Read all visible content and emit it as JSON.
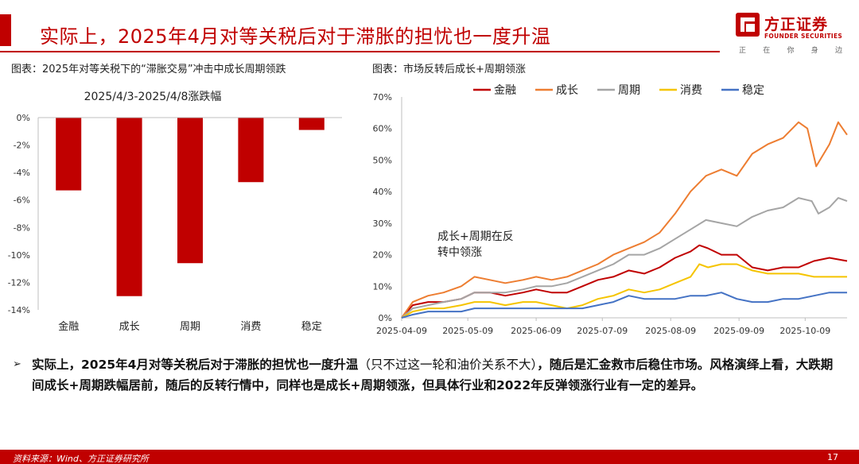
{
  "slide": {
    "title": "实际上，2025年4月对等关税后对于滞胀的担忧也一度升温",
    "page_number": "17",
    "source": "资料来源：Wind、方正证券研究所"
  },
  "logo": {
    "name_cn": "方正证券",
    "name_en": "FOUNDER SECURITIES",
    "slogan": [
      "正",
      "在",
      "你",
      "身",
      "边"
    ]
  },
  "figures": {
    "left_caption": "图表：2025年对等关税下的“滞胀交易”冲击中成长周期领跌",
    "right_caption": "图表：市场反转后成长+周期领涨"
  },
  "bullet": {
    "part1": "实际上，2025年4月对等关税后对于滞胀的担忧也一度升温",
    "part2": "（只不过这一轮和油价关系不大）",
    "part3": "，随后是汇金救市后稳住市场。风格演绎上看，大跌期间成长+周期跌幅居前，随后的反转行情中，同样也是成长+周期领涨，但具体行业和2022年反弹领涨行业有一定的差异。"
  },
  "chart_data": [
    {
      "type": "bar",
      "title": "2025/4/3-2025/4/8涨跌幅",
      "categories": [
        "金融",
        "成长",
        "周期",
        "消费",
        "稳定"
      ],
      "values": [
        -5.3,
        -13.0,
        -10.6,
        -4.7,
        -0.9
      ],
      "unit": "%",
      "ylim": [
        -14,
        0
      ],
      "yticks": [
        "0%",
        "-2%",
        "-4%",
        "-6%",
        "-8%",
        "-10%",
        "-12%",
        "-14%"
      ],
      "color": "#c00000"
    },
    {
      "type": "line",
      "annotation": "成长+周期在反转中领涨",
      "x_ticks": [
        "2025-04-09",
        "2025-05-09",
        "2025-06-09",
        "2025-07-09",
        "2025-08-09",
        "2025-09-09",
        "2025-10-09"
      ],
      "yticks": [
        "0%",
        "10%",
        "20%",
        "30%",
        "40%",
        "50%",
        "60%",
        "70%"
      ],
      "ylim": [
        0,
        70
      ],
      "x_range": [
        "2025-04-09",
        "2025-10-28"
      ],
      "series": [
        {
          "name": "金融",
          "color": "#c00000",
          "points": [
            [
              "2025-04-09",
              0
            ],
            [
              "2025-04-14",
              4
            ],
            [
              "2025-04-21",
              5
            ],
            [
              "2025-04-28",
              5
            ],
            [
              "2025-05-06",
              6
            ],
            [
              "2025-05-12",
              8
            ],
            [
              "2025-05-19",
              8
            ],
            [
              "2025-05-26",
              7
            ],
            [
              "2025-06-03",
              8
            ],
            [
              "2025-06-09",
              9
            ],
            [
              "2025-06-16",
              8
            ],
            [
              "2025-06-23",
              8
            ],
            [
              "2025-06-30",
              10
            ],
            [
              "2025-07-07",
              12
            ],
            [
              "2025-07-14",
              13
            ],
            [
              "2025-07-21",
              15
            ],
            [
              "2025-07-28",
              14
            ],
            [
              "2025-08-04",
              16
            ],
            [
              "2025-08-11",
              19
            ],
            [
              "2025-08-18",
              21
            ],
            [
              "2025-08-22",
              23
            ],
            [
              "2025-08-26",
              22
            ],
            [
              "2025-09-01",
              20
            ],
            [
              "2025-09-08",
              20
            ],
            [
              "2025-09-15",
              16
            ],
            [
              "2025-09-22",
              15
            ],
            [
              "2025-09-29",
              16
            ],
            [
              "2025-10-06",
              16
            ],
            [
              "2025-10-13",
              18
            ],
            [
              "2025-10-20",
              19
            ],
            [
              "2025-10-28",
              18
            ]
          ]
        },
        {
          "name": "成长",
          "color": "#ed7d31",
          "points": [
            [
              "2025-04-09",
              0
            ],
            [
              "2025-04-14",
              5
            ],
            [
              "2025-04-21",
              7
            ],
            [
              "2025-04-28",
              8
            ],
            [
              "2025-05-06",
              10
            ],
            [
              "2025-05-12",
              13
            ],
            [
              "2025-05-19",
              12
            ],
            [
              "2025-05-26",
              11
            ],
            [
              "2025-06-03",
              12
            ],
            [
              "2025-06-09",
              13
            ],
            [
              "2025-06-16",
              12
            ],
            [
              "2025-06-23",
              13
            ],
            [
              "2025-06-30",
              15
            ],
            [
              "2025-07-07",
              17
            ],
            [
              "2025-07-14",
              20
            ],
            [
              "2025-07-21",
              22
            ],
            [
              "2025-07-28",
              24
            ],
            [
              "2025-08-04",
              27
            ],
            [
              "2025-08-11",
              33
            ],
            [
              "2025-08-18",
              40
            ],
            [
              "2025-08-25",
              45
            ],
            [
              "2025-09-01",
              47
            ],
            [
              "2025-09-08",
              45
            ],
            [
              "2025-09-15",
              52
            ],
            [
              "2025-09-22",
              55
            ],
            [
              "2025-09-29",
              57
            ],
            [
              "2025-10-06",
              62
            ],
            [
              "2025-10-10",
              60
            ],
            [
              "2025-10-14",
              48
            ],
            [
              "2025-10-20",
              55
            ],
            [
              "2025-10-24",
              62
            ],
            [
              "2025-10-28",
              58
            ]
          ]
        },
        {
          "name": "周期",
          "color": "#a5a5a5",
          "points": [
            [
              "2025-04-09",
              0
            ],
            [
              "2025-04-14",
              3
            ],
            [
              "2025-04-21",
              4
            ],
            [
              "2025-04-28",
              5
            ],
            [
              "2025-05-06",
              6
            ],
            [
              "2025-05-12",
              8
            ],
            [
              "2025-05-19",
              8
            ],
            [
              "2025-05-26",
              8
            ],
            [
              "2025-06-03",
              9
            ],
            [
              "2025-06-09",
              10
            ],
            [
              "2025-06-16",
              10
            ],
            [
              "2025-06-23",
              11
            ],
            [
              "2025-06-30",
              13
            ],
            [
              "2025-07-07",
              15
            ],
            [
              "2025-07-14",
              17
            ],
            [
              "2025-07-21",
              20
            ],
            [
              "2025-07-28",
              20
            ],
            [
              "2025-08-04",
              22
            ],
            [
              "2025-08-11",
              25
            ],
            [
              "2025-08-18",
              28
            ],
            [
              "2025-08-25",
              31
            ],
            [
              "2025-09-01",
              30
            ],
            [
              "2025-09-08",
              29
            ],
            [
              "2025-09-15",
              32
            ],
            [
              "2025-09-22",
              34
            ],
            [
              "2025-09-29",
              35
            ],
            [
              "2025-10-06",
              38
            ],
            [
              "2025-10-12",
              37
            ],
            [
              "2025-10-15",
              33
            ],
            [
              "2025-10-20",
              35
            ],
            [
              "2025-10-24",
              38
            ],
            [
              "2025-10-28",
              37
            ]
          ]
        },
        {
          "name": "消费",
          "color": "#f5c400",
          "points": [
            [
              "2025-04-09",
              0
            ],
            [
              "2025-04-14",
              2
            ],
            [
              "2025-04-21",
              3
            ],
            [
              "2025-04-28",
              3
            ],
            [
              "2025-05-06",
              4
            ],
            [
              "2025-05-12",
              5
            ],
            [
              "2025-05-19",
              5
            ],
            [
              "2025-05-26",
              4
            ],
            [
              "2025-06-03",
              5
            ],
            [
              "2025-06-09",
              5
            ],
            [
              "2025-06-16",
              4
            ],
            [
              "2025-06-23",
              3
            ],
            [
              "2025-06-30",
              4
            ],
            [
              "2025-07-07",
              6
            ],
            [
              "2025-07-14",
              7
            ],
            [
              "2025-07-21",
              9
            ],
            [
              "2025-07-28",
              8
            ],
            [
              "2025-08-04",
              9
            ],
            [
              "2025-08-11",
              11
            ],
            [
              "2025-08-18",
              13
            ],
            [
              "2025-08-22",
              17
            ],
            [
              "2025-08-26",
              16
            ],
            [
              "2025-09-01",
              17
            ],
            [
              "2025-09-08",
              17
            ],
            [
              "2025-09-15",
              15
            ],
            [
              "2025-09-22",
              14
            ],
            [
              "2025-09-29",
              14
            ],
            [
              "2025-10-06",
              14
            ],
            [
              "2025-10-13",
              13
            ],
            [
              "2025-10-20",
              13
            ],
            [
              "2025-10-28",
              13
            ]
          ]
        },
        {
          "name": "稳定",
          "color": "#4472c4",
          "points": [
            [
              "2025-04-09",
              0
            ],
            [
              "2025-04-14",
              1
            ],
            [
              "2025-04-21",
              2
            ],
            [
              "2025-04-28",
              2
            ],
            [
              "2025-05-06",
              2
            ],
            [
              "2025-05-12",
              3
            ],
            [
              "2025-05-19",
              3
            ],
            [
              "2025-05-26",
              3
            ],
            [
              "2025-06-03",
              3
            ],
            [
              "2025-06-09",
              3
            ],
            [
              "2025-06-16",
              3
            ],
            [
              "2025-06-23",
              3
            ],
            [
              "2025-06-30",
              3
            ],
            [
              "2025-07-07",
              4
            ],
            [
              "2025-07-14",
              5
            ],
            [
              "2025-07-21",
              7
            ],
            [
              "2025-07-28",
              6
            ],
            [
              "2025-08-04",
              6
            ],
            [
              "2025-08-11",
              6
            ],
            [
              "2025-08-18",
              7
            ],
            [
              "2025-08-25",
              7
            ],
            [
              "2025-09-01",
              8
            ],
            [
              "2025-09-08",
              6
            ],
            [
              "2025-09-15",
              5
            ],
            [
              "2025-09-22",
              5
            ],
            [
              "2025-09-29",
              6
            ],
            [
              "2025-10-06",
              6
            ],
            [
              "2025-10-13",
              7
            ],
            [
              "2025-10-20",
              8
            ],
            [
              "2025-10-28",
              8
            ]
          ]
        }
      ]
    }
  ]
}
